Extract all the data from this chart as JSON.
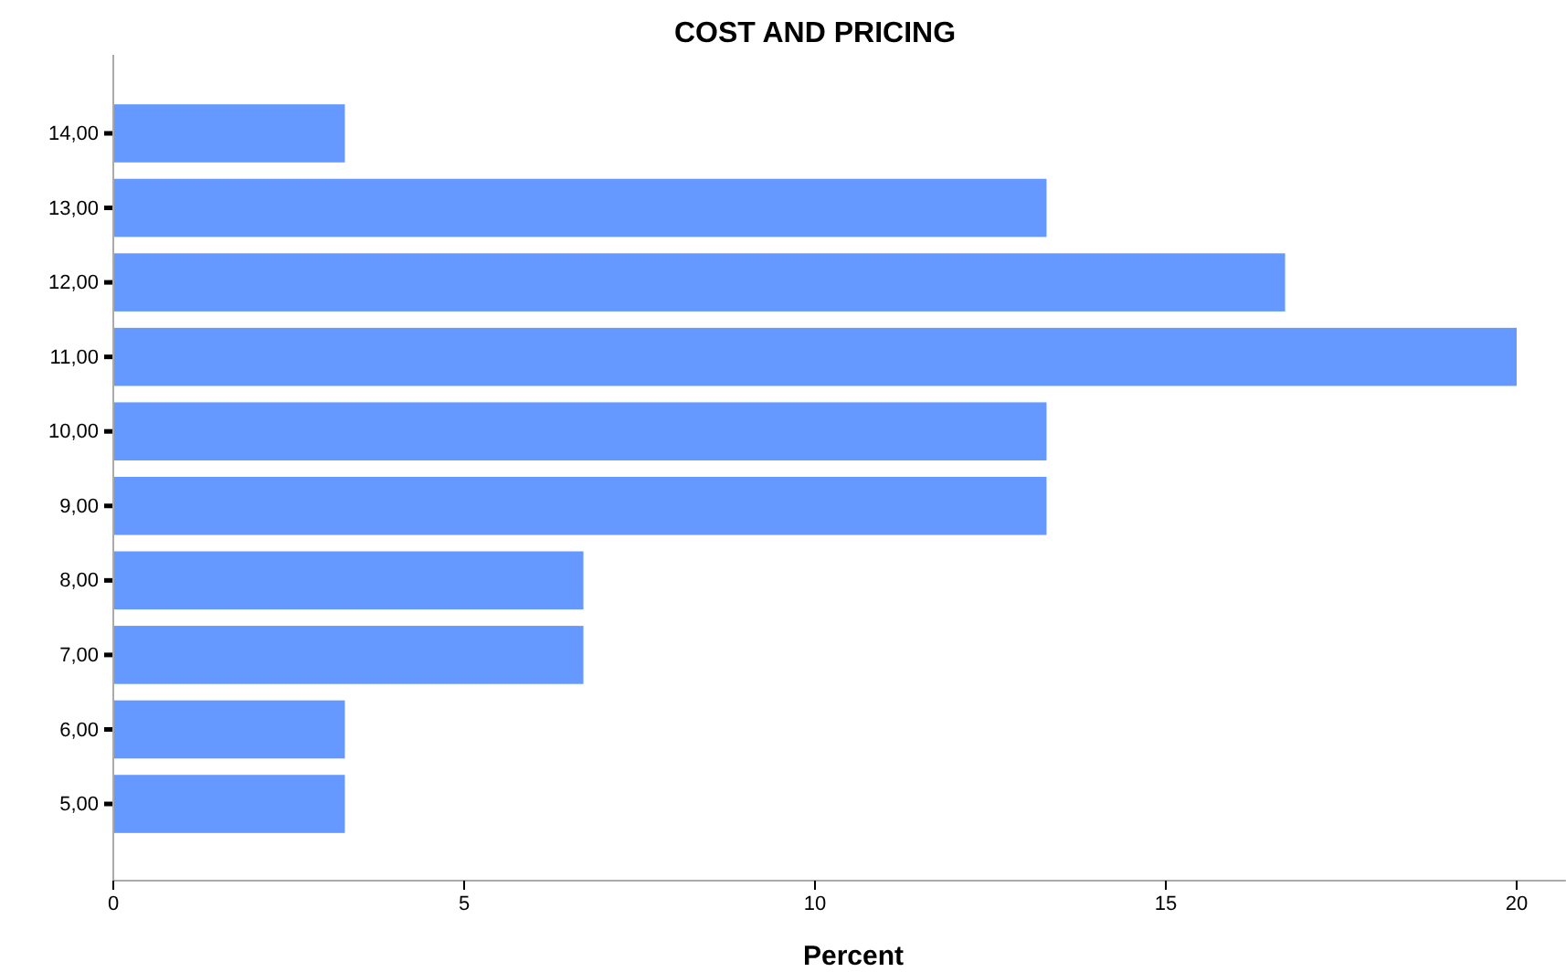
{
  "chart_data": {
    "type": "bar",
    "orientation": "horizontal",
    "title": "COST AND PRICING",
    "xlabel": "Percent",
    "categories": [
      "14,00",
      "13,00",
      "12,00",
      "11,00",
      "10,00",
      "9,00",
      "8,00",
      "7,00",
      "6,00",
      "5,00"
    ],
    "values": [
      3.3,
      13.3,
      16.7,
      20,
      13.3,
      13.3,
      6.7,
      6.7,
      3.3,
      3.3
    ],
    "color": "#6699ff",
    "xlim": [
      0,
      20.7
    ],
    "xticks": [
      0,
      5,
      10,
      15,
      20
    ],
    "grid": false
  }
}
